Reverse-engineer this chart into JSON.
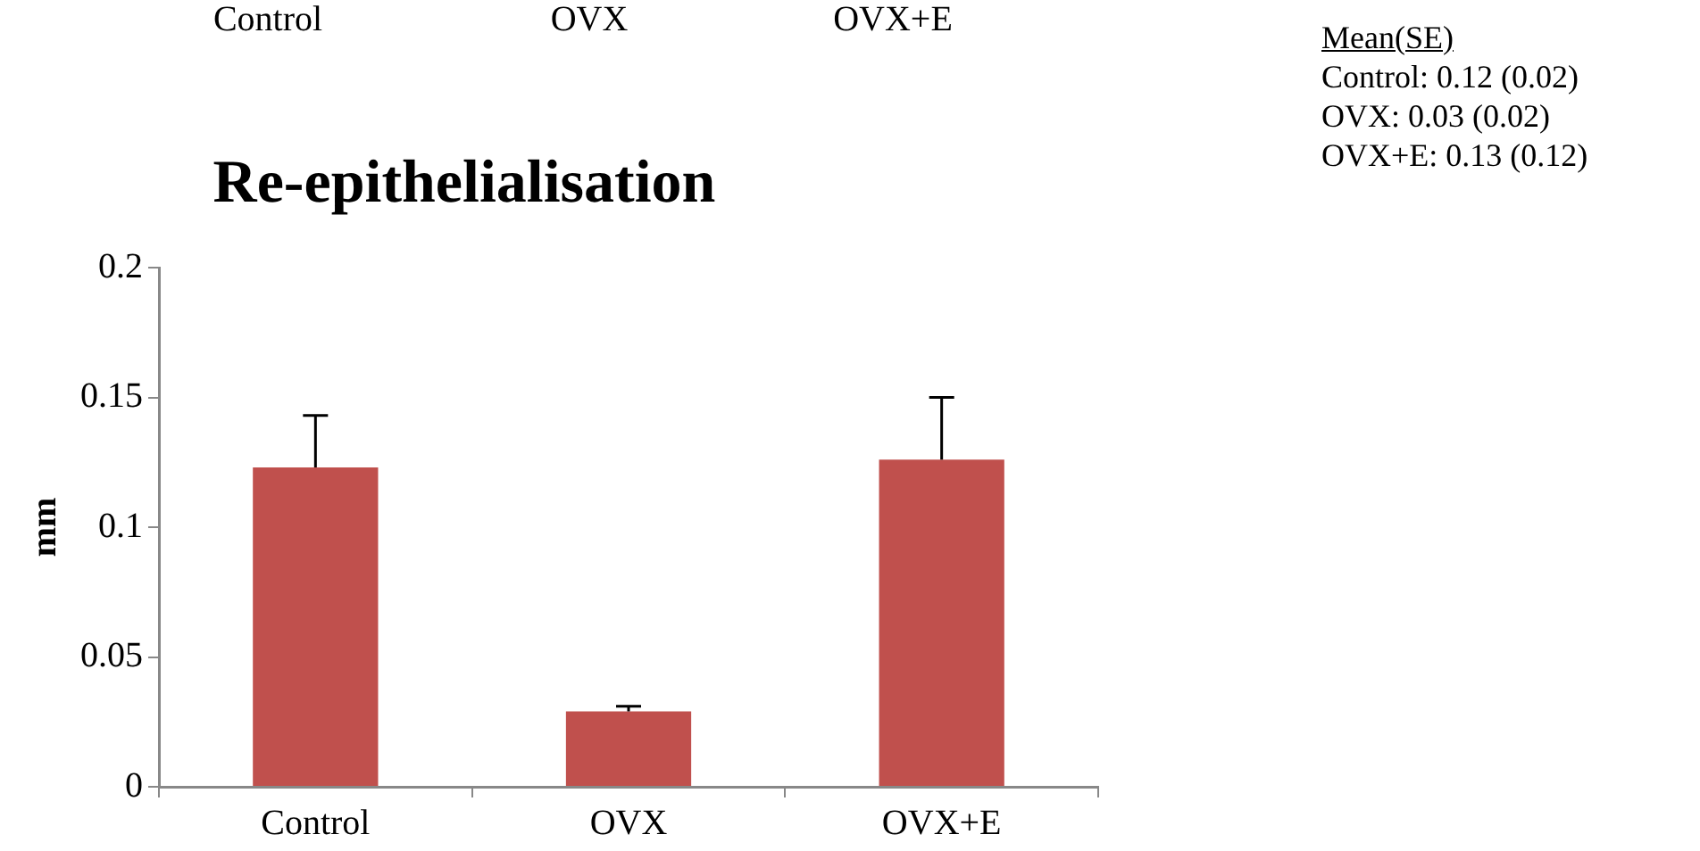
{
  "chart_data": {
    "type": "bar",
    "title": "Re-epithelialisation",
    "ylabel": "mm",
    "categories": [
      "Control",
      "OVX",
      "OVX+E"
    ],
    "values": [
      0.123,
      0.029,
      0.126
    ],
    "errors": [
      [
        0.123,
        0.143
      ],
      [
        0.029,
        0.031
      ],
      [
        0.126,
        0.15
      ]
    ],
    "color": "#c0504d",
    "ylim": [
      0,
      0.2
    ],
    "yticks": [
      0,
      0.05,
      0.1,
      0.15,
      0.2
    ],
    "grid": false,
    "legend": false,
    "annotations": [
      "Control",
      "OVX",
      "OVX+E",
      "Mean(SE)",
      "Control: 0.12 (0.02)",
      "OVX: 0.03 (0.02)",
      "OVX+E: 0.13 (0.12)"
    ]
  }
}
